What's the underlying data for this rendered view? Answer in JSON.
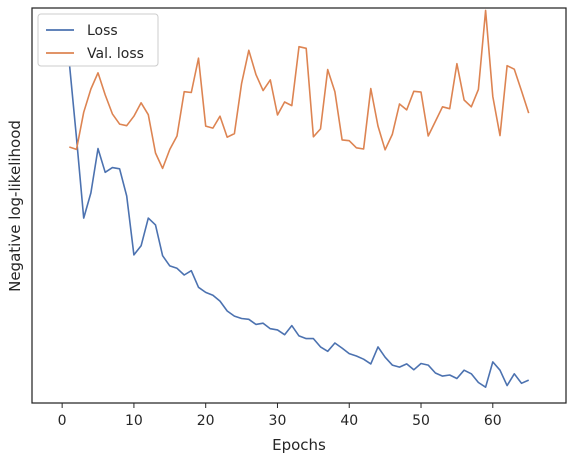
{
  "chart_data": {
    "type": "line",
    "title": "",
    "xlabel": "Epochs",
    "ylabel": "Negative log-likelihood",
    "xlim": [
      -4.2,
      70.2
    ],
    "ylim": [
      0,
      100
    ],
    "xticks": [
      0,
      10,
      20,
      30,
      40,
      50,
      60
    ],
    "y_tick_labels_visible": false,
    "grid": false,
    "legend": {
      "placement": "top-left",
      "entries": [
        "Loss",
        "Val. loss"
      ]
    },
    "colors": {
      "Loss": "#4c72b0",
      "Val. loss": "#dd8452"
    },
    "series": [
      {
        "name": "Loss",
        "x": [
          1,
          2,
          3,
          4,
          5,
          6,
          7,
          8,
          9,
          10,
          11,
          12,
          13,
          14,
          15,
          16,
          17,
          18,
          19,
          20,
          21,
          22,
          23,
          24,
          25,
          26,
          27,
          28,
          29,
          30,
          31,
          32,
          33,
          34,
          35,
          36,
          37,
          38,
          39,
          40,
          41,
          42,
          43,
          44,
          45,
          46,
          47,
          48,
          49,
          50,
          51,
          52,
          53,
          54,
          55,
          56,
          57,
          58,
          59,
          60,
          61,
          62,
          63,
          64,
          65
        ],
        "values": [
          86.2,
          67.1,
          46.8,
          53.2,
          64.4,
          58.4,
          59.6,
          59.3,
          52.4,
          37.5,
          39.8,
          46.8,
          45.1,
          37.3,
          34.7,
          34.1,
          32.4,
          33.5,
          29.3,
          28.0,
          27.3,
          25.8,
          23.3,
          22.0,
          21.4,
          21.2,
          19.9,
          20.2,
          18.8,
          18.5,
          17.3,
          19.6,
          17.0,
          16.3,
          16.3,
          14.2,
          13.1,
          15.2,
          13.9,
          12.5,
          11.9,
          11.1,
          9.9,
          14.2,
          11.6,
          9.6,
          9.1,
          9.9,
          8.4,
          10.0,
          9.6,
          7.6,
          6.8,
          7.1,
          6.2,
          8.3,
          7.4,
          5.2,
          4.0,
          10.4,
          8.3,
          4.4,
          7.4,
          5.0,
          5.8
        ]
      },
      {
        "name": "Val. loss",
        "x": [
          1,
          2,
          3,
          4,
          5,
          6,
          7,
          8,
          9,
          10,
          11,
          12,
          13,
          14,
          15,
          16,
          17,
          18,
          19,
          20,
          21,
          22,
          23,
          24,
          25,
          26,
          27,
          28,
          29,
          30,
          31,
          32,
          33,
          34,
          35,
          36,
          37,
          38,
          39,
          40,
          41,
          42,
          43,
          44,
          45,
          46,
          47,
          48,
          49,
          50,
          51,
          52,
          53,
          54,
          55,
          56,
          57,
          58,
          59,
          60,
          61,
          62,
          63,
          64,
          65
        ],
        "values": [
          64.8,
          64.2,
          73.6,
          79.5,
          83.6,
          78.0,
          73.2,
          70.6,
          70.2,
          72.6,
          76.0,
          73.0,
          63.3,
          59.4,
          64.2,
          67.6,
          78.8,
          78.6,
          87.3,
          70.1,
          69.6,
          72.6,
          67.3,
          68.2,
          80.9,
          89.3,
          83.2,
          79.1,
          81.8,
          72.9,
          76.2,
          75.3,
          90.2,
          89.8,
          67.4,
          69.4,
          84.4,
          78.8,
          66.6,
          66.4,
          64.6,
          64.3,
          79.6,
          70.1,
          64.1,
          68.0,
          75.7,
          74.2,
          78.9,
          78.7,
          67.6,
          71.3,
          75.0,
          74.5,
          85.9,
          76.7,
          75.0,
          79.4,
          99.4,
          77.6,
          67.7,
          85.4,
          84.5,
          79.0,
          73.4
        ]
      }
    ]
  }
}
